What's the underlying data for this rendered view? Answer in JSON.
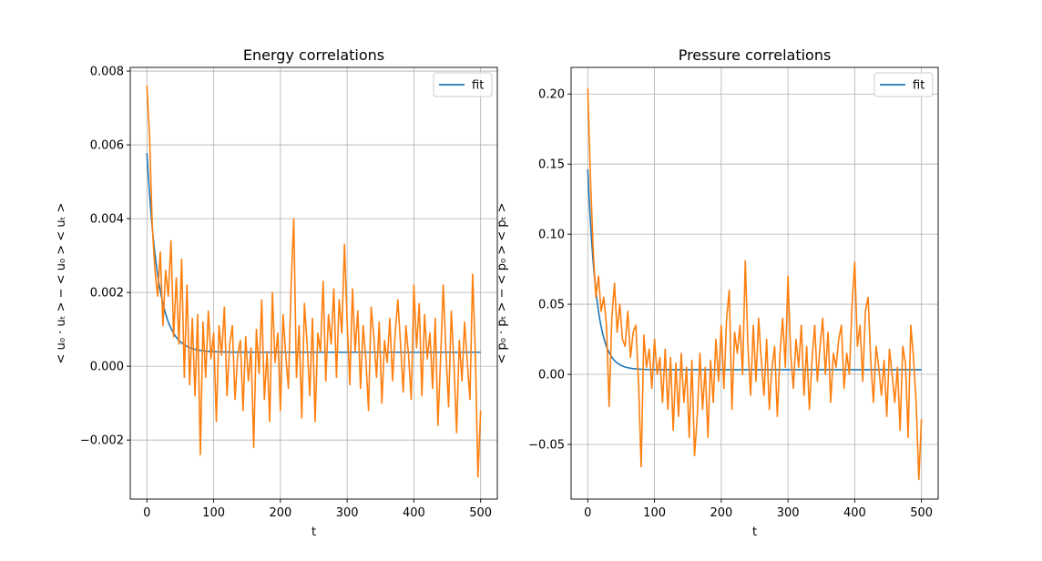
{
  "chart_data": [
    {
      "type": "line",
      "title": "Energy correlations",
      "xlabel": "t",
      "ylabel": "< u₀ · uₜ > − < u₀ > < uₜ >",
      "xlim": [
        -25,
        525
      ],
      "ylim": [
        -0.0036,
        0.0081
      ],
      "xticks": [
        0,
        100,
        200,
        300,
        400,
        500
      ],
      "xtick_labels": [
        "0",
        "100",
        "200",
        "300",
        "400",
        "500"
      ],
      "yticks": [
        -0.002,
        0.0,
        0.002,
        0.004,
        0.006,
        0.008
      ],
      "ytick_labels": [
        "−0.002",
        "0.000",
        "0.002",
        "0.004",
        "0.006",
        "0.008"
      ],
      "grid": true,
      "legend": {
        "position": "top-right",
        "entries": [
          "fit"
        ]
      },
      "fit": {
        "name": "fit",
        "color": "#1f77b4",
        "a": 0.0054,
        "tau": 17,
        "c": 0.00038
      },
      "x": [
        0,
        4,
        8,
        12,
        16,
        20,
        24,
        28,
        32,
        36,
        40,
        44,
        48,
        52,
        56,
        60,
        64,
        68,
        72,
        76,
        80,
        84,
        88,
        92,
        96,
        100,
        104,
        108,
        112,
        116,
        120,
        124,
        128,
        132,
        136,
        140,
        144,
        148,
        152,
        156,
        160,
        164,
        168,
        172,
        176,
        180,
        184,
        188,
        192,
        196,
        200,
        204,
        208,
        212,
        216,
        220,
        224,
        228,
        232,
        236,
        240,
        244,
        248,
        252,
        256,
        260,
        264,
        268,
        272,
        276,
        280,
        284,
        288,
        292,
        296,
        300,
        304,
        308,
        312,
        316,
        320,
        324,
        328,
        332,
        336,
        340,
        344,
        348,
        352,
        356,
        360,
        364,
        368,
        372,
        376,
        380,
        384,
        388,
        392,
        396,
        400,
        404,
        408,
        412,
        416,
        420,
        424,
        428,
        432,
        436,
        440,
        444,
        448,
        452,
        456,
        460,
        464,
        468,
        472,
        476,
        480,
        484,
        488,
        492,
        496,
        500
      ],
      "series": [
        {
          "name": "data",
          "color": "#ff7f0e",
          "values": [
            0.0076,
            0.0062,
            0.0038,
            0.0026,
            0.0019,
            0.0031,
            0.0011,
            0.0026,
            0.0019,
            0.0034,
            0.0008,
            0.0024,
            0.0006,
            0.0029,
            -0.0003,
            0.0022,
            -0.0005,
            0.0013,
            -0.0008,
            0.0014,
            -0.0024,
            0.0012,
            -0.0003,
            0.0015,
            0.0002,
            0.0009,
            -0.0015,
            0.0011,
            0.0003,
            0.0016,
            -0.0008,
            0.0006,
            0.0011,
            -0.0009,
            0.0003,
            0.0007,
            -0.0012,
            0.0008,
            -0.0004,
            0.0005,
            -0.0022,
            0.001,
            -0.0002,
            0.0018,
            -0.0009,
            0.0004,
            -0.0015,
            0.002,
            0.0001,
            0.0009,
            -0.0012,
            0.0014,
            0.0003,
            -0.0006,
            0.0022,
            0.004,
            -0.0003,
            0.0011,
            -0.0014,
            0.0017,
            0.0006,
            -0.0008,
            0.0013,
            -0.0015,
            0.0009,
            0.0004,
            0.0023,
            -0.0004,
            0.0014,
            0.0006,
            0.0021,
            -0.0003,
            0.0018,
            0.0009,
            0.0033,
            0.0012,
            -0.0005,
            0.0021,
            0.0004,
            0.0015,
            -0.0006,
            0.0011,
            0.0002,
            -0.0012,
            0.0016,
            0.0008,
            -0.0003,
            0.0012,
            -0.001,
            0.0007,
            0.0001,
            0.0013,
            -0.0004,
            0.0009,
            0.0018,
            0.0006,
            -0.0007,
            0.0011,
            0.0003,
            -0.0009,
            0.0022,
            0.0005,
            0.0017,
            -0.0008,
            0.0014,
            0.0002,
            0.0009,
            -0.0006,
            0.0013,
            -0.0016,
            0.0002,
            0.0022,
            0.0004,
            -0.0011,
            0.0015,
            0.0001,
            -0.0018,
            0.0007,
            -0.0004,
            0.0012,
            0.0001,
            -0.0009,
            0.0025,
            0.0004,
            -0.003,
            -0.0012
          ]
        }
      ]
    },
    {
      "type": "line",
      "title": "Pressure correlations",
      "xlabel": "t",
      "ylabel": "< p₀ · pₜ > − < p₀ > < pₜ >",
      "xlim": [
        -25,
        525
      ],
      "ylim": [
        -0.089,
        0.219
      ],
      "xticks": [
        0,
        100,
        200,
        300,
        400,
        500
      ],
      "xtick_labels": [
        "0",
        "100",
        "200",
        "300",
        "400",
        "500"
      ],
      "yticks": [
        -0.05,
        0.0,
        0.05,
        0.1,
        0.15,
        0.2
      ],
      "ytick_labels": [
        "−0.05",
        "0.00",
        "0.05",
        "0.10",
        "0.15",
        "0.20"
      ],
      "grid": true,
      "legend": {
        "position": "top-right",
        "entries": [
          "fit"
        ]
      },
      "fit": {
        "name": "fit",
        "color": "#1f77b4",
        "a": 0.143,
        "tau": 13,
        "c": 0.0033
      },
      "x": [
        0,
        4,
        8,
        12,
        16,
        20,
        24,
        28,
        32,
        36,
        40,
        44,
        48,
        52,
        56,
        60,
        64,
        68,
        72,
        76,
        80,
        84,
        88,
        92,
        96,
        100,
        104,
        108,
        112,
        116,
        120,
        124,
        128,
        132,
        136,
        140,
        144,
        148,
        152,
        156,
        160,
        164,
        168,
        172,
        176,
        180,
        184,
        188,
        192,
        196,
        200,
        204,
        208,
        212,
        216,
        220,
        224,
        228,
        232,
        236,
        240,
        244,
        248,
        252,
        256,
        260,
        264,
        268,
        272,
        276,
        280,
        284,
        288,
        292,
        296,
        300,
        304,
        308,
        312,
        316,
        320,
        324,
        328,
        332,
        336,
        340,
        344,
        348,
        352,
        356,
        360,
        364,
        368,
        372,
        376,
        380,
        384,
        388,
        392,
        396,
        400,
        404,
        408,
        412,
        416,
        420,
        424,
        428,
        432,
        436,
        440,
        444,
        448,
        452,
        456,
        460,
        464,
        468,
        472,
        476,
        480,
        484,
        488,
        492,
        496,
        500
      ],
      "series": [
        {
          "name": "data",
          "color": "#ff7f0e",
          "values": [
            0.204,
            0.14,
            0.09,
            0.055,
            0.07,
            0.045,
            0.055,
            0.035,
            -0.023,
            0.04,
            0.065,
            0.03,
            0.05,
            0.025,
            0.02,
            0.045,
            0.012,
            0.03,
            0.035,
            -0.005,
            -0.066,
            0.028,
            0.005,
            0.018,
            -0.01,
            0.025,
            0.0,
            0.012,
            -0.02,
            0.018,
            -0.025,
            0.012,
            -0.04,
            0.008,
            -0.03,
            0.015,
            -0.02,
            0.005,
            -0.045,
            0.01,
            -0.058,
            -0.03,
            0.015,
            -0.025,
            0.005,
            -0.045,
            0.01,
            -0.02,
            0.025,
            -0.005,
            0.035,
            -0.01,
            0.04,
            0.06,
            -0.025,
            0.03,
            0.015,
            0.035,
            0.0,
            0.081,
            0.02,
            -0.015,
            0.035,
            -0.005,
            0.04,
            0.01,
            -0.015,
            0.025,
            -0.025,
            0.005,
            0.02,
            -0.03,
            0.015,
            0.04,
            0.005,
            0.07,
            0.015,
            -0.01,
            0.025,
            0.005,
            0.035,
            -0.015,
            0.02,
            -0.025,
            0.01,
            0.035,
            -0.005,
            0.02,
            0.04,
            0.0,
            0.03,
            -0.02,
            0.015,
            0.005,
            0.025,
            0.035,
            -0.01,
            0.015,
            0.0,
            0.05,
            0.08,
            0.02,
            0.035,
            -0.005,
            0.045,
            0.055,
            0.01,
            -0.02,
            0.02,
            0.005,
            -0.015,
            0.01,
            -0.03,
            0.018,
            0.0,
            -0.02,
            0.005,
            -0.04,
            0.02,
            0.008,
            -0.045,
            0.035,
            0.012,
            -0.02,
            -0.075,
            -0.032
          ]
        }
      ]
    }
  ]
}
